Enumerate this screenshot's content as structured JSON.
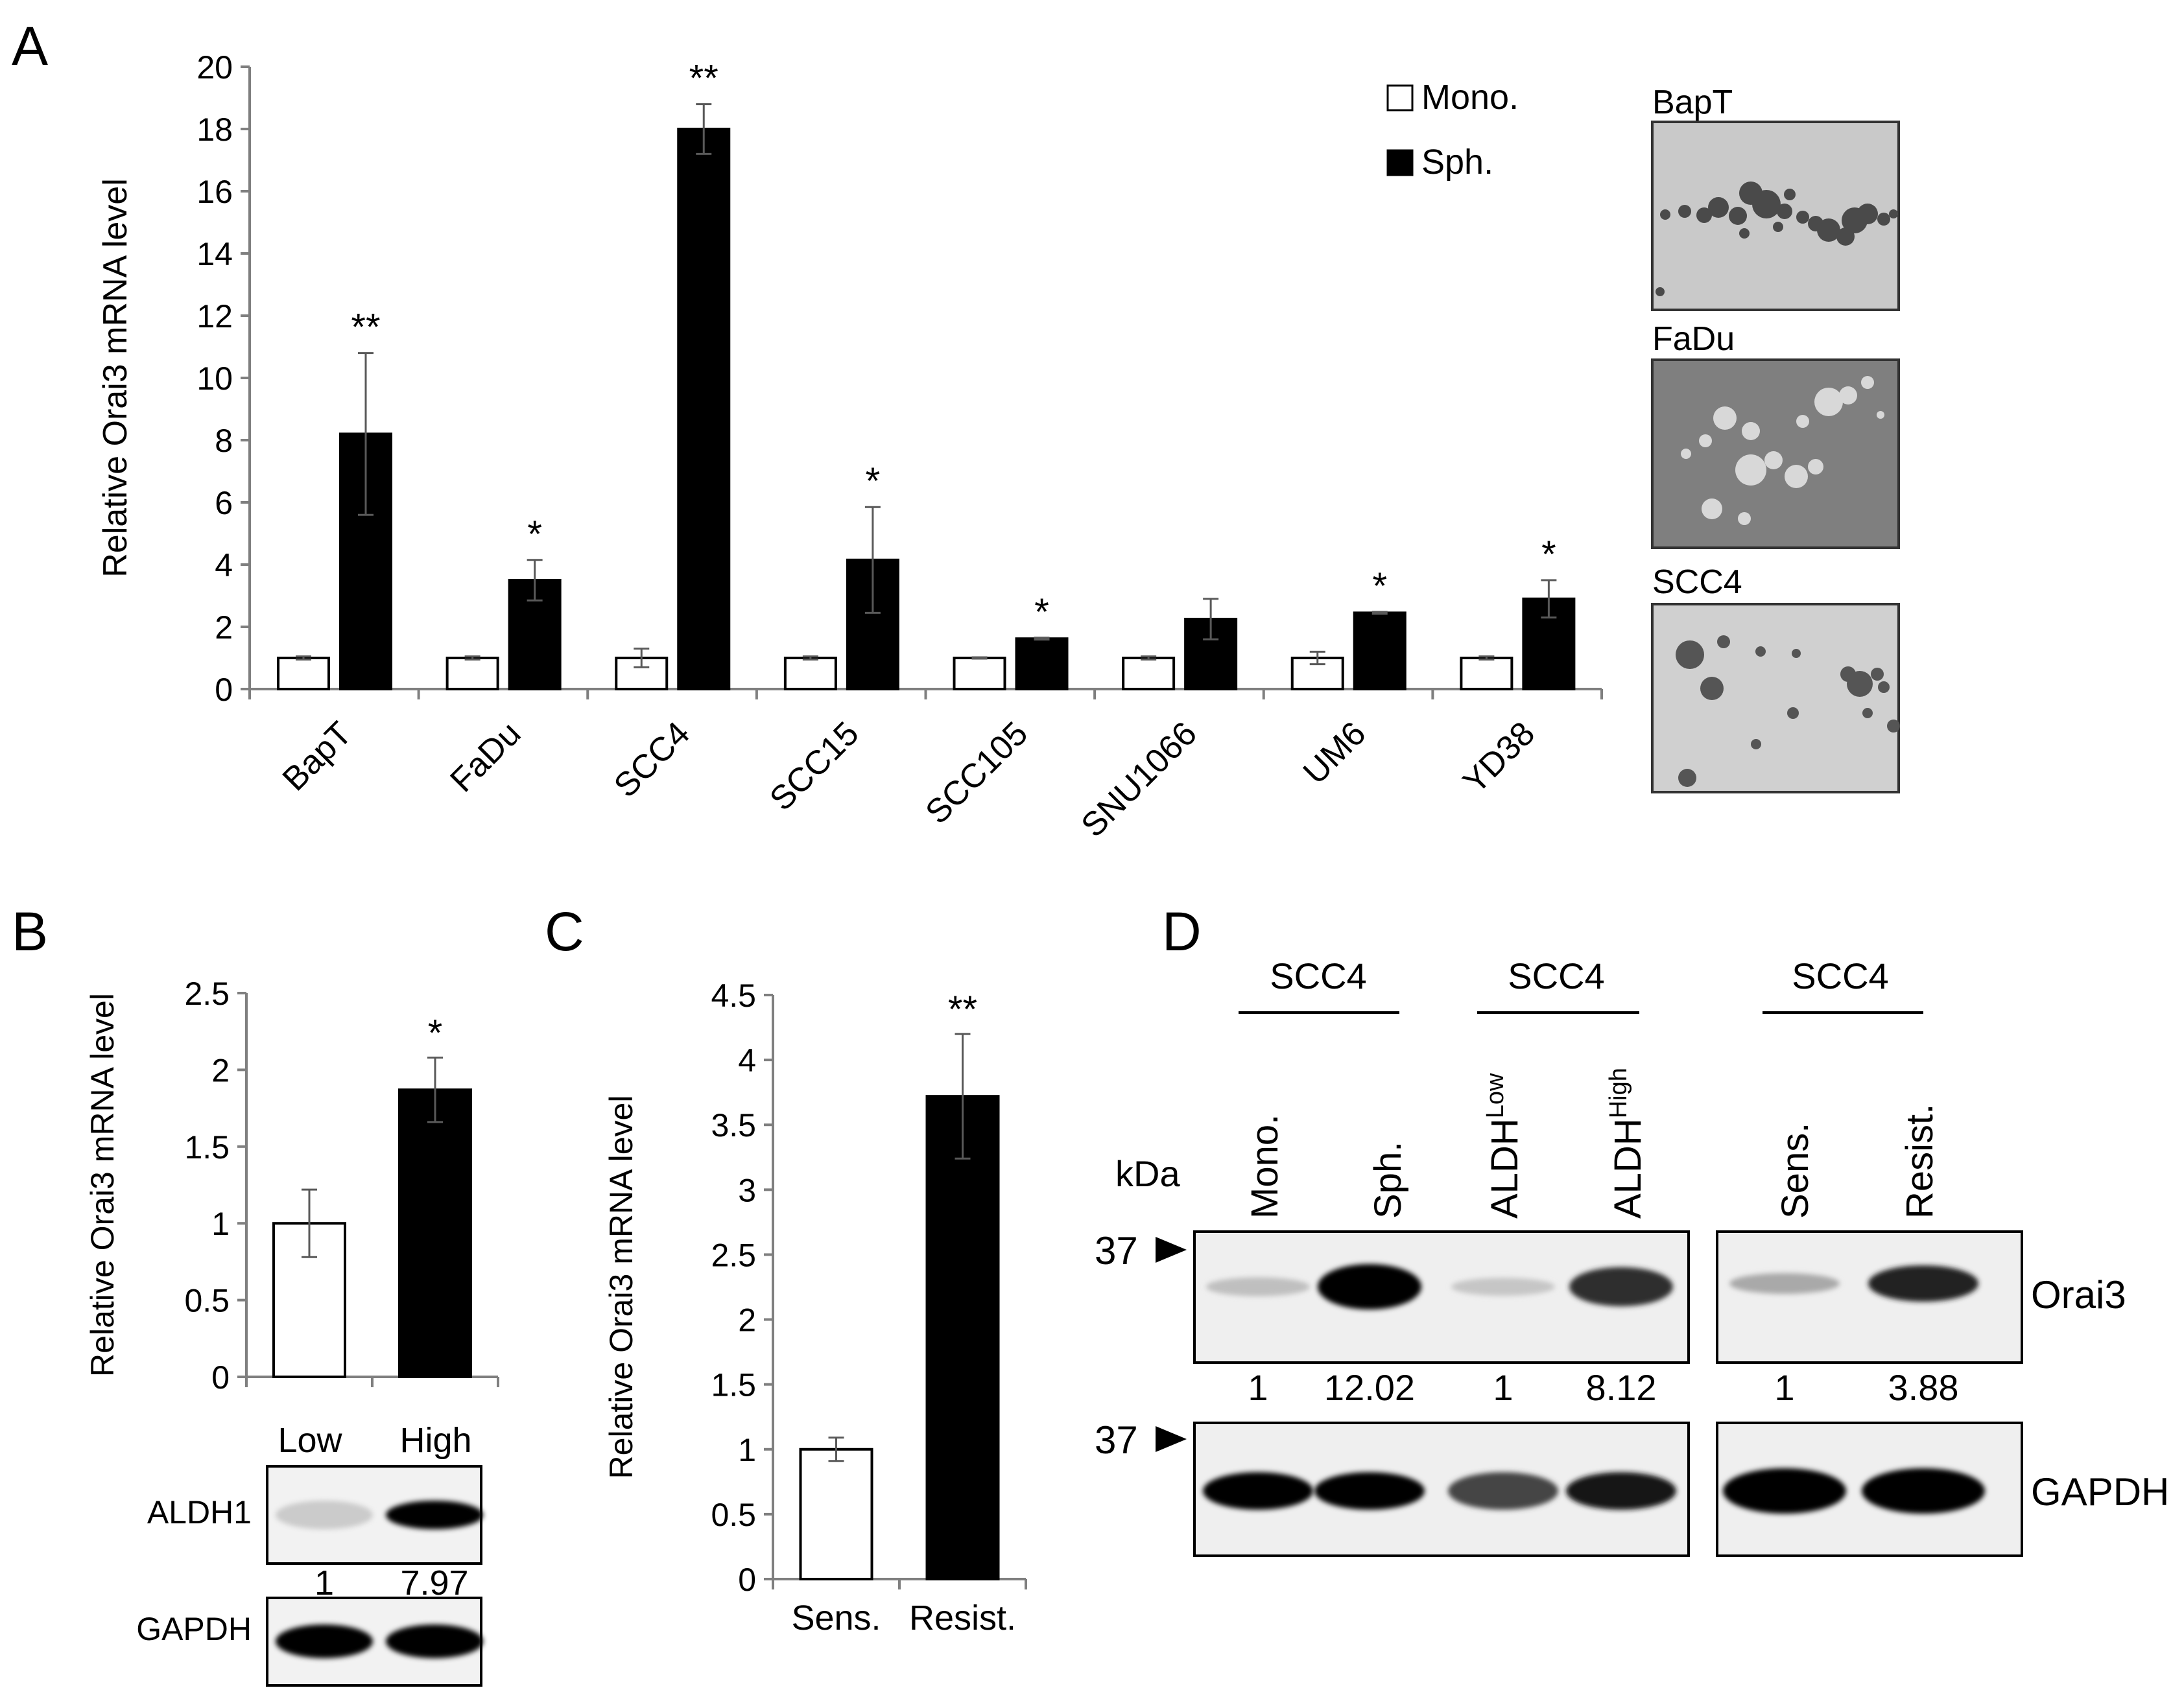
{
  "panel_labels": {
    "a": "A",
    "b": "B",
    "c": "C",
    "d": "D"
  },
  "colors": {
    "mono": "#ffffff",
    "sph": "#000000",
    "axis": "#7f7f7f"
  },
  "chart_data": [
    {
      "id": "A",
      "type": "bar",
      "ylabel": "Relative Orai3 mRNA level",
      "ylim": [
        0,
        20
      ],
      "yticks": [
        "0",
        "2",
        "4",
        "6",
        "8",
        "10",
        "12",
        "14",
        "16",
        "18",
        "20"
      ],
      "categories": [
        "BapT",
        "FaDu",
        "SCC4",
        "SCC15",
        "SCC105",
        "SNU1066",
        "UM6",
        "YD38"
      ],
      "legend": {
        "placement": "top-right",
        "entries": [
          "Mono.",
          "Sph."
        ]
      },
      "series": [
        {
          "name": "Mono.",
          "values": [
            1,
            1,
            1,
            1,
            1,
            1,
            1,
            1
          ],
          "errors": [
            0.05,
            0.05,
            0.3,
            0.05,
            0.02,
            0.05,
            0.2,
            0.05
          ]
        },
        {
          "name": "Sph.",
          "values": [
            8.2,
            3.5,
            18.0,
            4.15,
            1.62,
            2.25,
            2.45,
            2.9
          ],
          "errors": [
            2.6,
            0.65,
            0.8,
            1.7,
            0.03,
            0.65,
            0.03,
            0.6
          ]
        }
      ],
      "significance": [
        "**",
        "*",
        "**",
        "*",
        "*",
        "",
        "*",
        "*"
      ],
      "images": [
        "BapT",
        "FaDu",
        "SCC4"
      ]
    },
    {
      "id": "B",
      "type": "bar",
      "ylabel": "Relative Orai3 mRNA level",
      "ylim": [
        0,
        2.5
      ],
      "yticks": [
        "0",
        "0.5",
        "1",
        "1.5",
        "2",
        "2.5"
      ],
      "categories": [
        "Low",
        "High"
      ],
      "values": [
        1.0,
        1.87
      ],
      "errors": [
        0.22,
        0.21
      ],
      "fills": [
        "#ffffff",
        "#000000"
      ],
      "significance": [
        "",
        "*"
      ],
      "blot": {
        "rows": [
          "ALDH1",
          "GAPDH"
        ],
        "quant": [
          "1",
          "7.97"
        ],
        "band_levels": [
          [
            0.1,
            1.0
          ],
          [
            1.0,
            1.0
          ]
        ]
      }
    },
    {
      "id": "C",
      "type": "bar",
      "ylabel": "Relative Orai3 mRNA level",
      "ylim": [
        0,
        4.5
      ],
      "yticks": [
        "0",
        "0.5",
        "1",
        "1.5",
        "2",
        "2.5",
        "3",
        "3.5",
        "4",
        "4.5"
      ],
      "categories": [
        "Sens.",
        "Resist."
      ],
      "values": [
        1.0,
        3.72
      ],
      "errors": [
        0.09,
        0.48
      ],
      "fills": [
        "#ffffff",
        "#000000"
      ],
      "significance": [
        "",
        "**"
      ]
    }
  ],
  "panel_d": {
    "groups": [
      "SCC4",
      "SCC4",
      "SCC4"
    ],
    "kda": "kDa",
    "marker": "37",
    "lanes_left": [
      {
        "label": "Mono."
      },
      {
        "label": "Sph."
      },
      {
        "base": "ALDH",
        "sup": "Low"
      },
      {
        "base": "ALDH",
        "sup": "High"
      }
    ],
    "lanes_right": [
      {
        "label": "Sens."
      },
      {
        "label": "Resist."
      }
    ],
    "orai3_quant_left": [
      "1",
      "12.02",
      "1",
      "8.12"
    ],
    "orai3_quant_right": [
      "1",
      "3.88"
    ],
    "orai3_levels_left": [
      0.15,
      1.0,
      0.12,
      0.8
    ],
    "orai3_levels_right": [
      0.25,
      0.85
    ],
    "gapdh_levels_left": [
      1.0,
      1.0,
      0.7,
      0.9
    ],
    "gapdh_levels_right": [
      1.0,
      1.0
    ],
    "row_labels": [
      "Orai3",
      "GAPDH"
    ]
  }
}
